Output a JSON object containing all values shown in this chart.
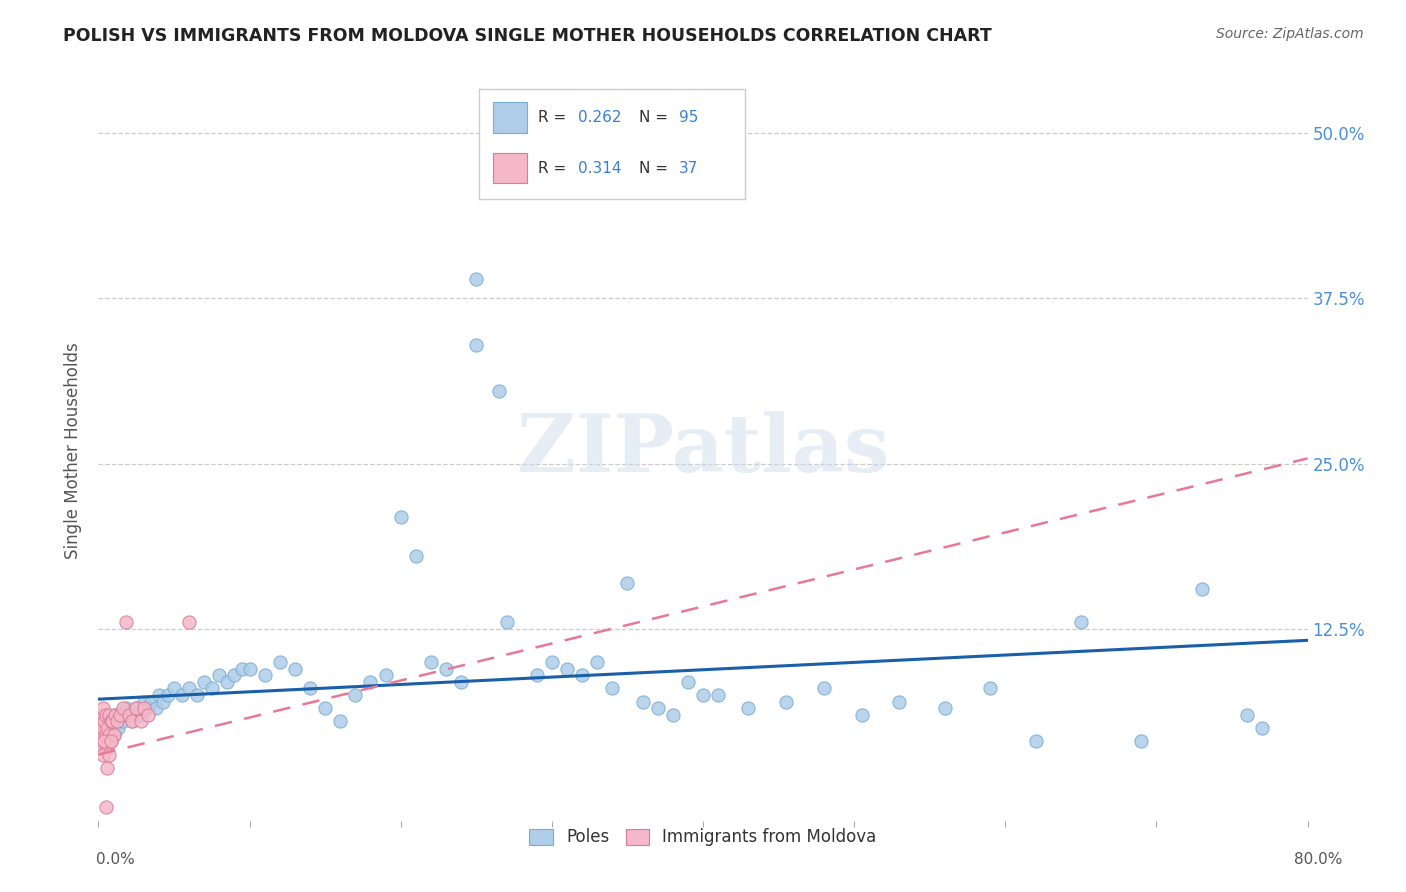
{
  "title": "POLISH VS IMMIGRANTS FROM MOLDOVA SINGLE MOTHER HOUSEHOLDS CORRELATION CHART",
  "source": "Source: ZipAtlas.com",
  "ylabel": "Single Mother Households",
  "watermark": "ZIPatlas",
  "poles_color": "#aecde8",
  "poles_edge_color": "#7aadd4",
  "moldova_color": "#f4b8c8",
  "moldova_edge_color": "#e07898",
  "line_poles_color": "#1a5fa8",
  "line_moldova_color": "#e87898",
  "ytick_color": "#4a90d9",
  "background_color": "#ffffff",
  "grid_color": "#cccccc",
  "xlim": [
    0.0,
    0.8
  ],
  "ylim": [
    -0.02,
    0.54
  ],
  "ytick_vals": [
    0.0,
    0.125,
    0.25,
    0.375,
    0.5
  ],
  "ytick_labels": [
    "",
    "12.5%",
    "25.0%",
    "37.5%",
    "50.0%"
  ],
  "poles_x": [
    0.001,
    0.001,
    0.002,
    0.002,
    0.002,
    0.003,
    0.003,
    0.003,
    0.004,
    0.004,
    0.004,
    0.005,
    0.005,
    0.005,
    0.006,
    0.006,
    0.007,
    0.007,
    0.008,
    0.008,
    0.009,
    0.01,
    0.01,
    0.011,
    0.012,
    0.013,
    0.015,
    0.016,
    0.018,
    0.02,
    0.022,
    0.025,
    0.028,
    0.03,
    0.033,
    0.035,
    0.038,
    0.04,
    0.043,
    0.046,
    0.05,
    0.055,
    0.06,
    0.065,
    0.07,
    0.075,
    0.08,
    0.085,
    0.09,
    0.095,
    0.1,
    0.11,
    0.12,
    0.13,
    0.14,
    0.15,
    0.16,
    0.17,
    0.18,
    0.19,
    0.2,
    0.21,
    0.22,
    0.23,
    0.24,
    0.25,
    0.27,
    0.29,
    0.31,
    0.33,
    0.35,
    0.37,
    0.39,
    0.41,
    0.43,
    0.455,
    0.48,
    0.505,
    0.53,
    0.56,
    0.59,
    0.62,
    0.65,
    0.69,
    0.73,
    0.76,
    0.25,
    0.265,
    0.3,
    0.32,
    0.34,
    0.36,
    0.38,
    0.4,
    0.77
  ],
  "poles_y": [
    0.04,
    0.055,
    0.035,
    0.06,
    0.045,
    0.05,
    0.04,
    0.055,
    0.045,
    0.06,
    0.035,
    0.05,
    0.04,
    0.055,
    0.045,
    0.05,
    0.055,
    0.04,
    0.05,
    0.045,
    0.055,
    0.045,
    0.06,
    0.05,
    0.055,
    0.05,
    0.06,
    0.055,
    0.065,
    0.06,
    0.055,
    0.065,
    0.06,
    0.07,
    0.065,
    0.07,
    0.065,
    0.075,
    0.07,
    0.075,
    0.08,
    0.075,
    0.08,
    0.075,
    0.085,
    0.08,
    0.09,
    0.085,
    0.09,
    0.095,
    0.095,
    0.09,
    0.1,
    0.095,
    0.08,
    0.065,
    0.055,
    0.075,
    0.085,
    0.09,
    0.21,
    0.18,
    0.1,
    0.095,
    0.085,
    0.34,
    0.13,
    0.09,
    0.095,
    0.1,
    0.16,
    0.065,
    0.085,
    0.075,
    0.065,
    0.07,
    0.08,
    0.06,
    0.07,
    0.065,
    0.08,
    0.04,
    0.13,
    0.04,
    0.155,
    0.06,
    0.39,
    0.305,
    0.1,
    0.09,
    0.08,
    0.07,
    0.06,
    0.075,
    0.05
  ],
  "moldova_x": [
    0.001,
    0.001,
    0.002,
    0.002,
    0.003,
    0.003,
    0.003,
    0.004,
    0.004,
    0.005,
    0.005,
    0.006,
    0.006,
    0.007,
    0.007,
    0.008,
    0.008,
    0.009,
    0.01,
    0.011,
    0.012,
    0.014,
    0.016,
    0.018,
    0.02,
    0.022,
    0.025,
    0.028,
    0.03,
    0.033,
    0.003,
    0.004,
    0.005,
    0.006,
    0.007,
    0.008,
    0.06
  ],
  "moldova_y": [
    0.04,
    0.055,
    0.045,
    0.06,
    0.035,
    0.05,
    0.065,
    0.04,
    0.055,
    0.045,
    0.06,
    0.035,
    0.05,
    0.045,
    0.06,
    0.055,
    0.04,
    0.055,
    0.045,
    0.06,
    0.055,
    0.06,
    0.065,
    0.13,
    0.06,
    0.055,
    0.065,
    0.055,
    0.065,
    0.06,
    0.03,
    0.04,
    -0.01,
    0.02,
    0.03,
    0.04,
    0.13
  ]
}
